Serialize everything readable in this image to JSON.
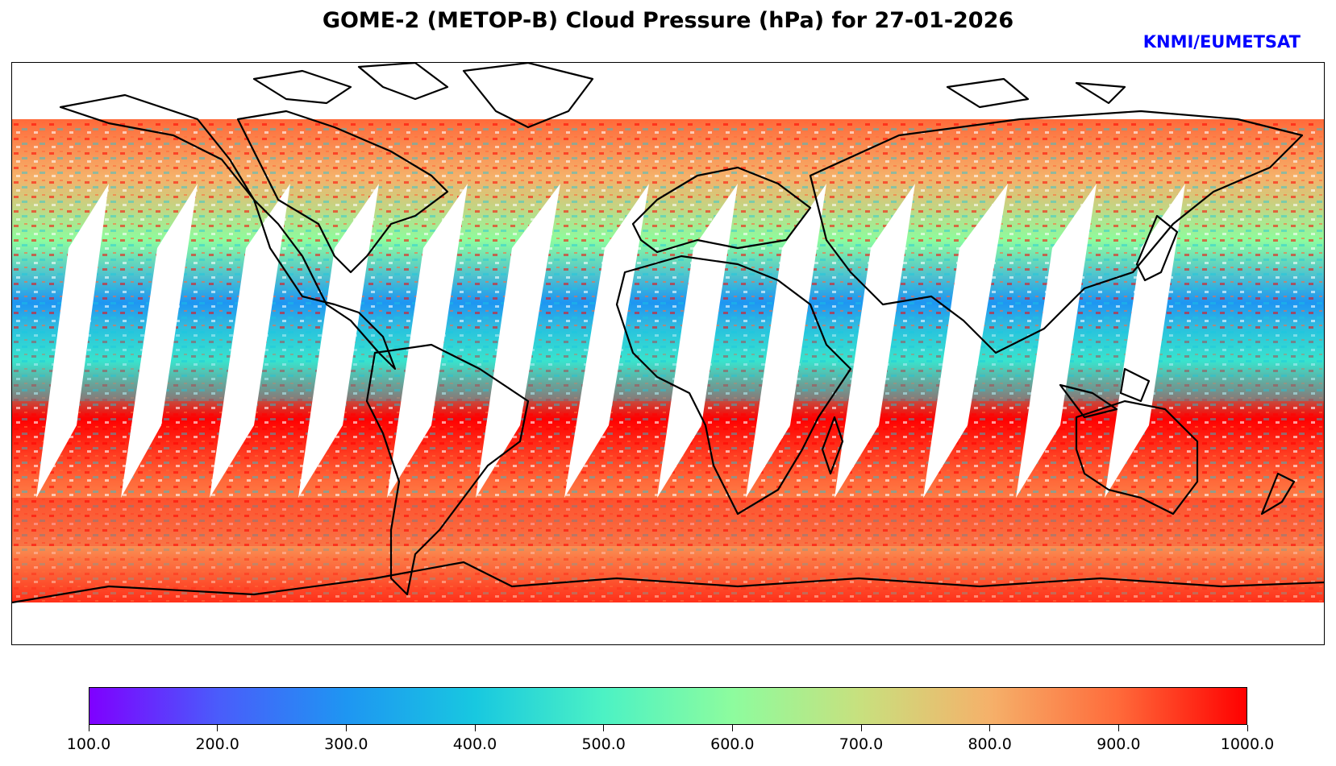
{
  "title": "GOME-2 (METOP-B) Cloud Pressure (hPa) for 27-01-2026",
  "credit": "KNMI/EUMETSAT",
  "colorbar": {
    "min": 100.0,
    "max": 1000.0,
    "tick_labels": [
      "100.0",
      "200.0",
      "300.0",
      "400.0",
      "500.0",
      "600.0",
      "700.0",
      "800.0",
      "900.0",
      "1000.0"
    ],
    "colors": [
      "#7f00ff",
      "#4a5cfb",
      "#1e96f2",
      "#18c8e0",
      "#4cf2c4",
      "#8dfc9e",
      "#c8e07e",
      "#f5b16a",
      "#ff6a3a",
      "#ff0000"
    ]
  },
  "map": {
    "projection": "plate carree",
    "coastline_color": "#000000",
    "no_data_color": "#ffffff"
  }
}
